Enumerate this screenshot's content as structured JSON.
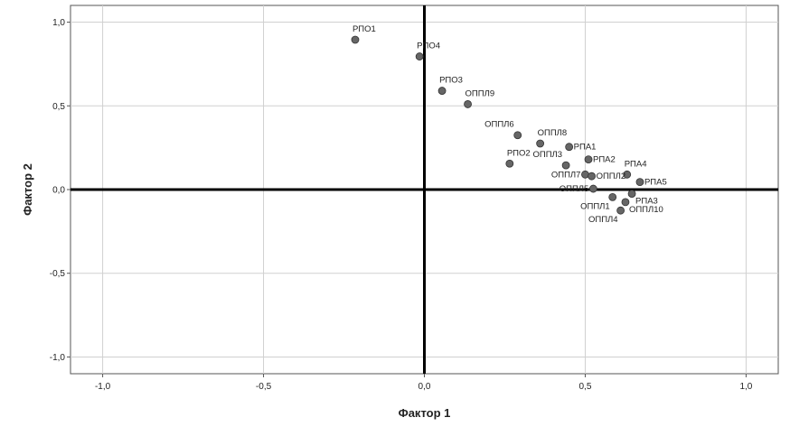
{
  "chart_data": {
    "type": "scatter",
    "title": "",
    "xlabel": "Фактор 1",
    "ylabel": "Фактор 2",
    "xlim": [
      -1.1,
      1.1
    ],
    "ylim": [
      -1.1,
      1.1
    ],
    "xticks": [
      -1.0,
      -0.5,
      0.0,
      0.5,
      1.0
    ],
    "yticks": [
      -1.0,
      -0.5,
      0.0,
      0.5,
      1.0
    ],
    "xtick_labels": [
      "-1,0",
      "-0,5",
      "0,0",
      "0,5",
      "1,0"
    ],
    "ytick_labels": [
      "-1,0",
      "-0,5",
      "0,0",
      "0,5",
      "1,0"
    ],
    "grid": true,
    "marker_color": "#666666",
    "points": [
      {
        "label": "РПО1",
        "x": -0.215,
        "y": 0.895,
        "lpos": "above"
      },
      {
        "label": "РПО4",
        "x": -0.015,
        "y": 0.795,
        "lpos": "above"
      },
      {
        "label": "РПО3",
        "x": 0.055,
        "y": 0.59,
        "lpos": "above"
      },
      {
        "label": "ОППЛ9",
        "x": 0.135,
        "y": 0.51,
        "lpos": "above"
      },
      {
        "label": "ОППЛ6",
        "x": 0.29,
        "y": 0.325,
        "lpos": "above-left"
      },
      {
        "label": "ОППЛ8",
        "x": 0.36,
        "y": 0.275,
        "lpos": "above"
      },
      {
        "label": "РПА1",
        "x": 0.45,
        "y": 0.255,
        "lpos": "right"
      },
      {
        "label": "РПО2",
        "x": 0.265,
        "y": 0.155,
        "lpos": "above"
      },
      {
        "label": "ОППЛ3",
        "x": 0.44,
        "y": 0.145,
        "lpos": "above-left"
      },
      {
        "label": "РПА2",
        "x": 0.51,
        "y": 0.18,
        "lpos": "right"
      },
      {
        "label": "РПА4",
        "x": 0.63,
        "y": 0.09,
        "lpos": "above"
      },
      {
        "label": "ОППЛ7",
        "x": 0.5,
        "y": 0.09,
        "lpos": "left"
      },
      {
        "label": "ОППЛ2",
        "x": 0.52,
        "y": 0.08,
        "lpos": "right"
      },
      {
        "label": "РПА5",
        "x": 0.67,
        "y": 0.045,
        "lpos": "right"
      },
      {
        "label": "ОППЛ5",
        "x": 0.525,
        "y": 0.005,
        "lpos": "left"
      },
      {
        "label": "ОППЛ1",
        "x": 0.585,
        "y": -0.045,
        "lpos": "below-left"
      },
      {
        "label": "РПА3",
        "x": 0.645,
        "y": -0.025,
        "lpos": "below-right"
      },
      {
        "label": "ОППЛ10",
        "x": 0.625,
        "y": -0.075,
        "lpos": "below-right"
      },
      {
        "label": "ОППЛ4",
        "x": 0.61,
        "y": -0.125,
        "lpos": "below-left"
      }
    ]
  }
}
